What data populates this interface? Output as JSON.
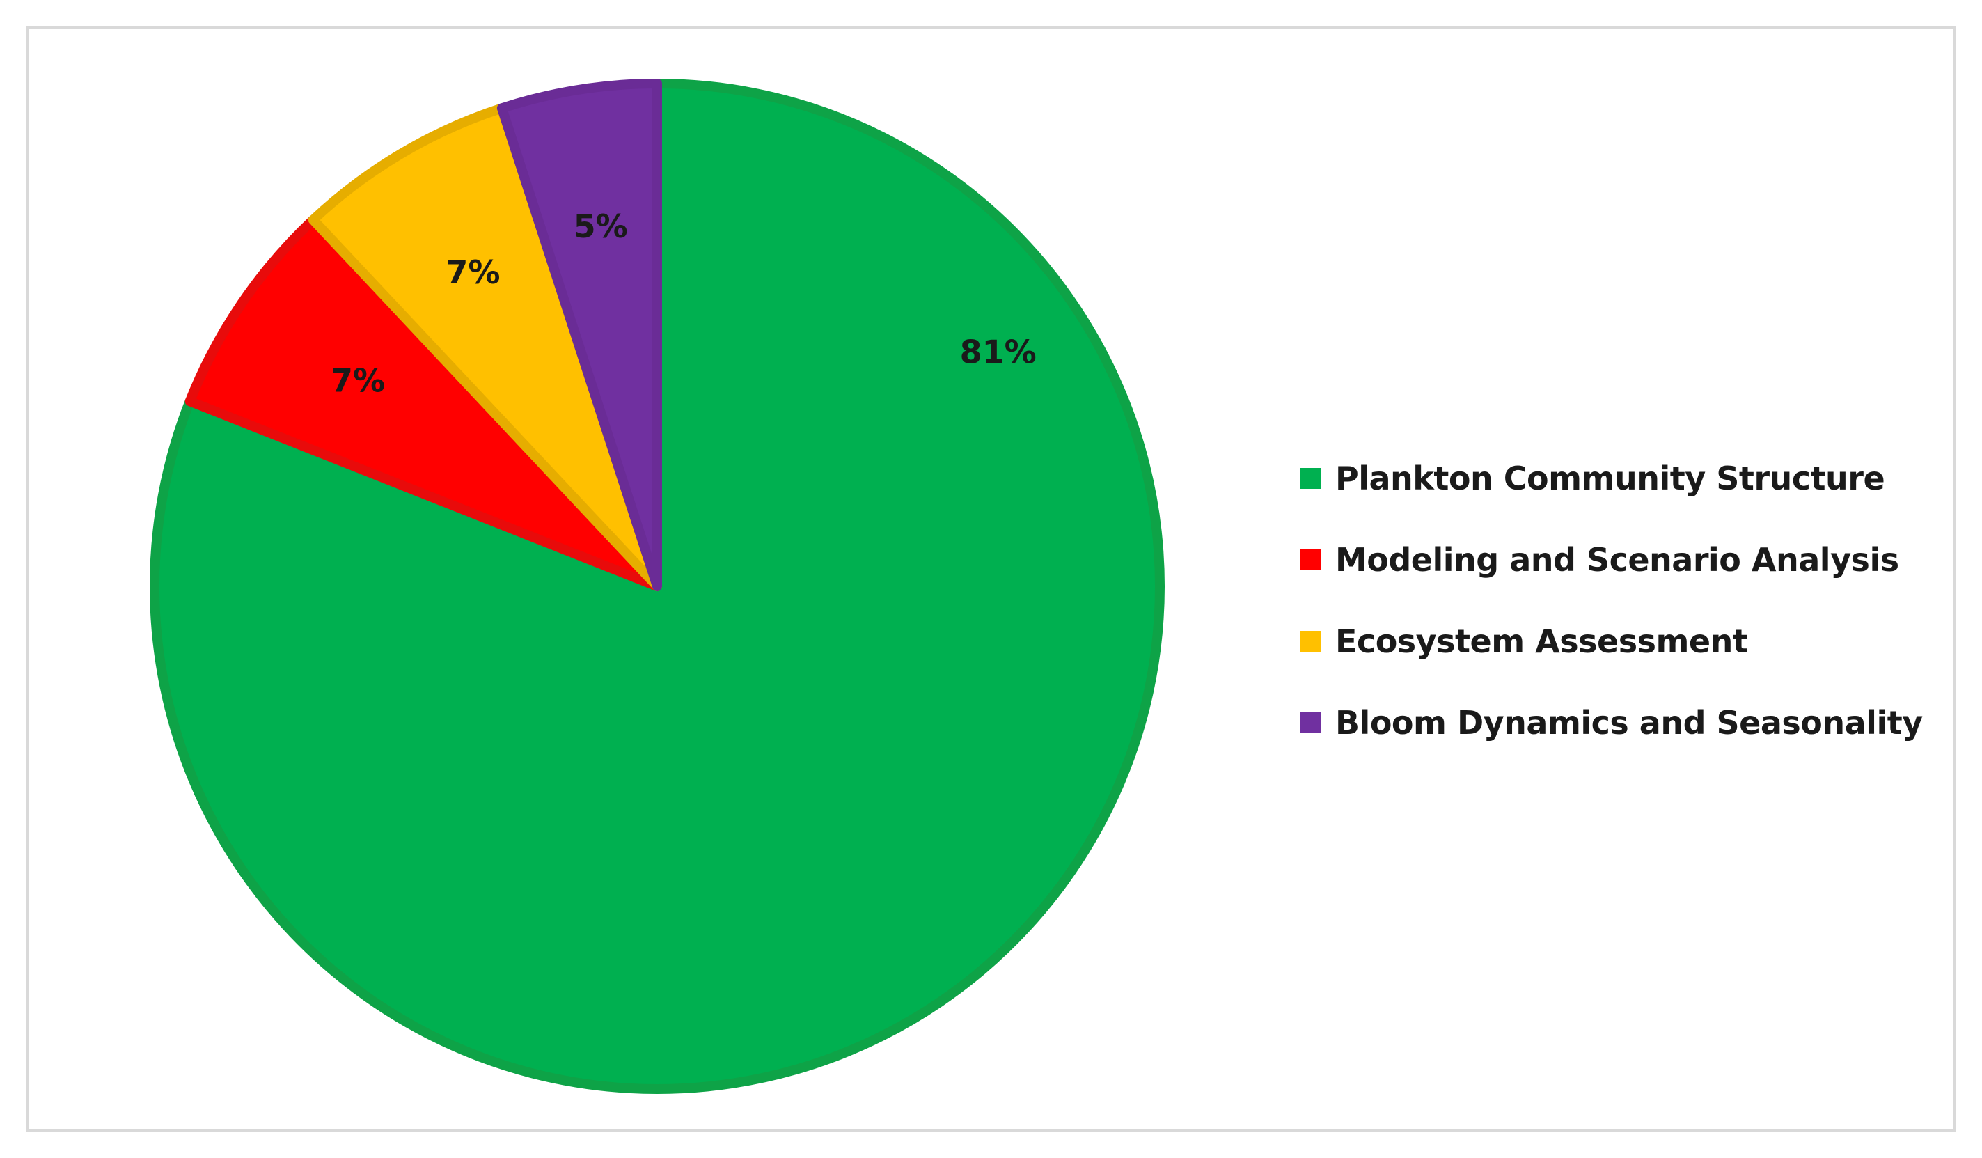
{
  "chart_data": {
    "type": "pie",
    "title": "",
    "categories": [
      "Plankton Community Structure",
      "Modeling and Scenario Analysis",
      "Ecosystem Assessment",
      "Bloom Dynamics and Seasonality"
    ],
    "values": [
      81,
      7,
      7,
      5
    ],
    "labels": [
      "81%",
      "7%",
      "7%",
      "5%"
    ],
    "colors": [
      "#00b050",
      "#ff0000",
      "#ffc000",
      "#7030a0"
    ],
    "border_colors": [
      "#0ea347",
      "#e80b0b",
      "#e6ad00",
      "#6a2c96"
    ],
    "legend_position": "right",
    "start_angle": "12 o'clock",
    "direction": "clockwise"
  }
}
